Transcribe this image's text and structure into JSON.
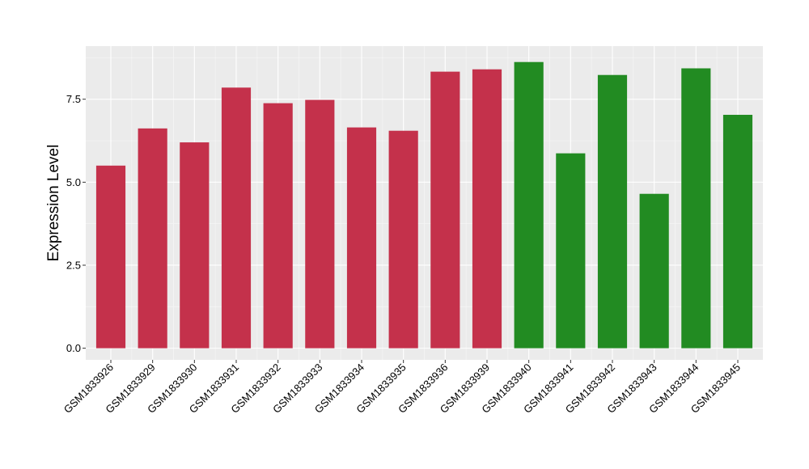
{
  "chart_data": {
    "type": "bar",
    "title": "",
    "xlabel": "",
    "ylabel": "Expression Level",
    "ylim": [
      -0.35,
      9.1
    ],
    "yticks": [
      0.0,
      2.5,
      5.0,
      7.5
    ],
    "ytick_labels": [
      "0.0",
      "2.5",
      "5.0",
      "7.5"
    ],
    "grid": true,
    "legend": "none",
    "categories": [
      "GSM1833926",
      "GSM1833929",
      "GSM1833930",
      "GSM1833931",
      "GSM1833932",
      "GSM1833933",
      "GSM1833934",
      "GSM1833935",
      "GSM1833936",
      "GSM1833939",
      "GSM1833940",
      "GSM1833941",
      "GSM1833942",
      "GSM1833943",
      "GSM1833944",
      "GSM1833945"
    ],
    "values": [
      5.5,
      6.62,
      6.2,
      7.85,
      7.38,
      7.48,
      6.65,
      6.55,
      8.33,
      8.4,
      8.62,
      5.87,
      8.23,
      4.65,
      8.43,
      7.03
    ],
    "bar_colors": [
      "#c4314b",
      "#c4314b",
      "#c4314b",
      "#c4314b",
      "#c4314b",
      "#c4314b",
      "#c4314b",
      "#c4314b",
      "#c4314b",
      "#c4314b",
      "#228b22",
      "#228b22",
      "#228b22",
      "#228b22",
      "#228b22",
      "#228b22"
    ],
    "colors": {
      "panel_background": "#ebebeb",
      "grid_major": "#ffffff",
      "grid_minor": "#f5f5f5",
      "axis_tick": "#333333"
    }
  }
}
